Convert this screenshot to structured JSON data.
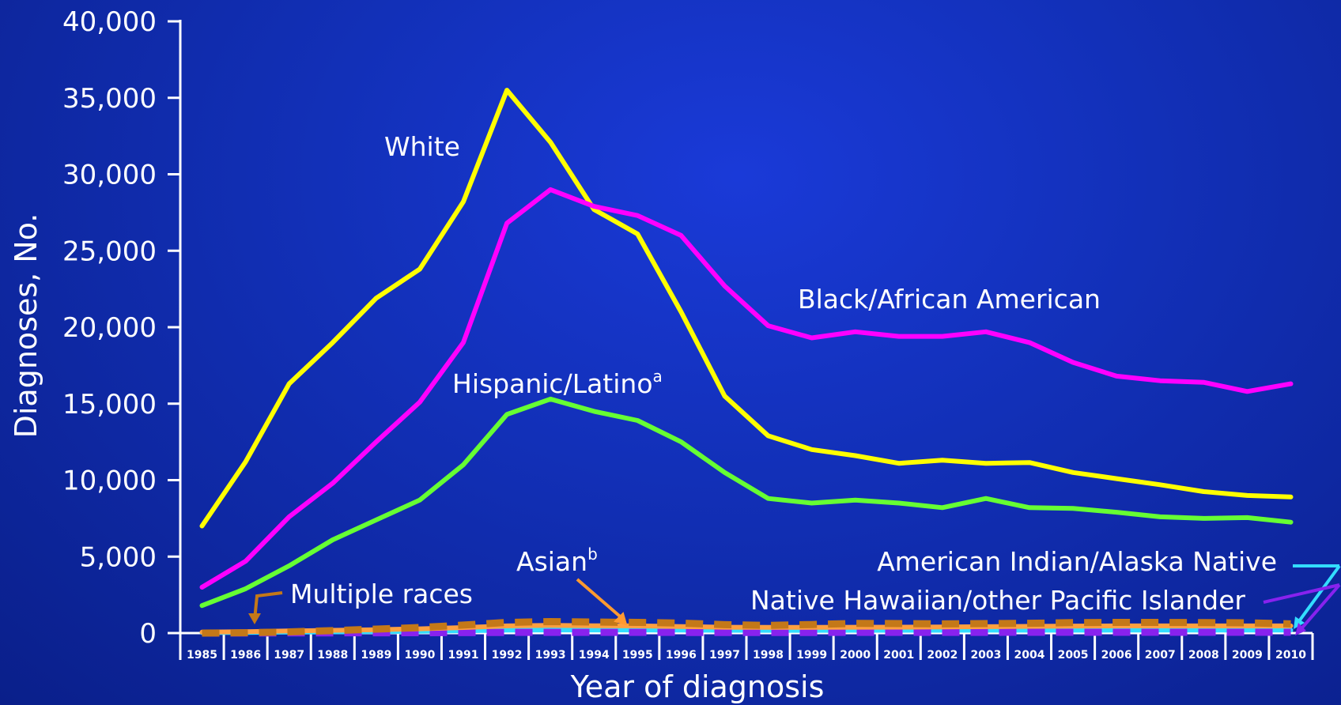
{
  "chart_data": {
    "type": "line",
    "xlabel": "Year of diagnosis",
    "ylabel": "Diagnoses, No.",
    "ylim": [
      0,
      40000
    ],
    "yticks": [
      0,
      5000,
      10000,
      15000,
      20000,
      25000,
      30000,
      35000,
      40000
    ],
    "ytick_labels": [
      "0",
      "5,000",
      "10,000",
      "15,000",
      "20,000",
      "25,000",
      "30,000",
      "35,000",
      "40,000"
    ],
    "categories": [
      "1985",
      "1986",
      "1987",
      "1988",
      "1989",
      "1990",
      "1991",
      "1992",
      "1993",
      "1994",
      "1995",
      "1996",
      "1997",
      "1998",
      "1999",
      "2000",
      "2001",
      "2002",
      "2003",
      "2004",
      "2005",
      "2006",
      "2007",
      "2008",
      "2009",
      "2010"
    ],
    "series": [
      {
        "name": "White",
        "color": "#ffff00",
        "style": "solid",
        "values": [
          7000,
          11200,
          16300,
          19000,
          21900,
          23800,
          28200,
          35500,
          32100,
          27700,
          26100,
          21000,
          15500,
          12900,
          12000,
          11600,
          11100,
          11300,
          11100,
          11150,
          10500,
          10100,
          9700,
          9250,
          9000,
          8900
        ]
      },
      {
        "name": "Black/African American",
        "color": "#ff00ff",
        "style": "solid",
        "values": [
          3000,
          4700,
          7600,
          9800,
          12500,
          15100,
          19000,
          26800,
          29000,
          27900,
          27300,
          26000,
          22700,
          20100,
          19300,
          19700,
          19400,
          19400,
          19700,
          19000,
          17700,
          16800,
          16500,
          16400,
          15800,
          16300
        ]
      },
      {
        "name": "Hispanic/Latino",
        "label_sup": "a",
        "color": "#66ff33",
        "style": "solid",
        "values": [
          1800,
          2900,
          4400,
          6100,
          7400,
          8700,
          11000,
          14300,
          15300,
          14500,
          13900,
          12500,
          10500,
          8800,
          8500,
          8700,
          8500,
          8200,
          8800,
          8200,
          8150,
          7900,
          7600,
          7500,
          7550,
          7250
        ]
      },
      {
        "name": "Asian",
        "label_sup": "b",
        "color": "#ffa040",
        "style": "solid",
        "values": [
          60,
          90,
          140,
          180,
          220,
          280,
          360,
          470,
          500,
          480,
          470,
          430,
          380,
          370,
          370,
          380,
          390,
          400,
          420,
          440,
          460,
          470,
          470,
          470,
          470,
          470
        ]
      },
      {
        "name": "Multiple races",
        "color": "#c47818",
        "style": "dashed",
        "values": [
          0,
          20,
          80,
          160,
          260,
          360,
          520,
          700,
          750,
          720,
          700,
          650,
          550,
          500,
          560,
          630,
          620,
          600,
          620,
          640,
          680,
          700,
          700,
          680,
          670,
          600
        ]
      },
      {
        "name": "American Indian/Alaska Native",
        "color": "#33ddff",
        "style": "solid",
        "values": [
          30,
          40,
          60,
          80,
          100,
          120,
          150,
          190,
          200,
          200,
          200,
          190,
          180,
          175,
          175,
          180,
          180,
          180,
          185,
          185,
          185,
          190,
          190,
          190,
          190,
          190
        ]
      },
      {
        "name": "Native Hawaiian/other Pacific Islander",
        "color": "#8822ee",
        "style": "dashed",
        "values": [
          0,
          5,
          10,
          15,
          20,
          25,
          30,
          40,
          45,
          45,
          45,
          40,
          40,
          40,
          40,
          45,
          45,
          45,
          45,
          50,
          50,
          50,
          50,
          50,
          50,
          50
        ]
      }
    ],
    "annotations": {
      "white": "White",
      "black": "Black/African American",
      "hispanic": "Hispanic/Latino",
      "hispanic_sup": "a",
      "asian": "Asian",
      "asian_sup": "b",
      "multiple": "Multiple races",
      "aian": "American Indian/Alaska Native",
      "nhopi": "Native Hawaiian/other Pacific Islander"
    }
  }
}
